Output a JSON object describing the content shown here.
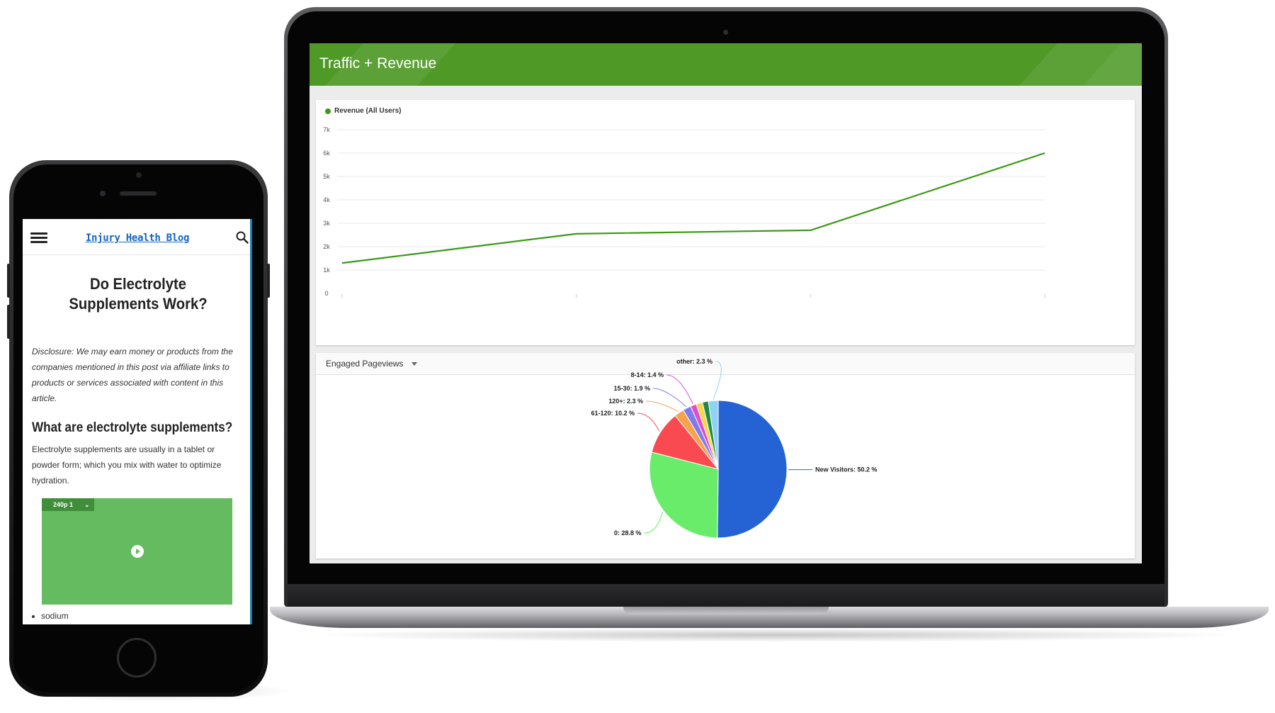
{
  "dashboard": {
    "title": "Traffic + Revenue",
    "header_color": "#4f9a27",
    "line_legend": "Revenue (All Users)",
    "pie_selector": "Engaged Pageviews"
  },
  "chart_data": [
    {
      "type": "line",
      "series": [
        {
          "name": "Revenue (All Users)",
          "color": "#3a9a14",
          "values": [
            1300,
            2550,
            2700,
            6000
          ]
        }
      ],
      "x": [
        0,
        1,
        2,
        3
      ],
      "y_ticks": [
        "0",
        "1k",
        "2k",
        "3k",
        "4k",
        "5k",
        "6k",
        "7k"
      ],
      "ylim": [
        0,
        7000
      ],
      "grid": true,
      "legend": "top-left"
    },
    {
      "type": "pie",
      "slices": [
        {
          "label": "New Visitors: 50.2 %",
          "value": 50.2,
          "color": "#2563d4"
        },
        {
          "label": "0: 28.8 %",
          "value": 28.8,
          "color": "#69ec6a"
        },
        {
          "label": "61-120: 10.2 %",
          "value": 10.2,
          "color": "#f94a52"
        },
        {
          "label": "120+: 2.3 %",
          "value": 2.3,
          "color": "#f7a24c"
        },
        {
          "label": "15-30: 1.9 %",
          "value": 1.9,
          "color": "#7e7bf0"
        },
        {
          "label": "8-14: 1.4 %",
          "value": 1.4,
          "color": "#e14ec7"
        },
        {
          "label": "",
          "value": 1.5,
          "color": "#f5d74a"
        },
        {
          "label": "",
          "value": 1.4,
          "color": "#1d8a4a"
        },
        {
          "label": "other: 2.3 %",
          "value": 2.3,
          "color": "#8fd2f2"
        }
      ]
    }
  ],
  "phone": {
    "site_title": "Injury Health Blog",
    "post_title": "Do Electrolyte Supplements Work?",
    "disclosure": "Disclosure: We may earn money or products from the companies mentioned in this post via affiliate links to products or services associated with content in this article.",
    "heading": "What are electrolyte supplements?",
    "paragraph": "Electrolyte supplements are usually in a tablet or powder form; which you mix with water to optimize hydration.",
    "video_quality": "240p 1",
    "list": [
      "sodium"
    ]
  }
}
